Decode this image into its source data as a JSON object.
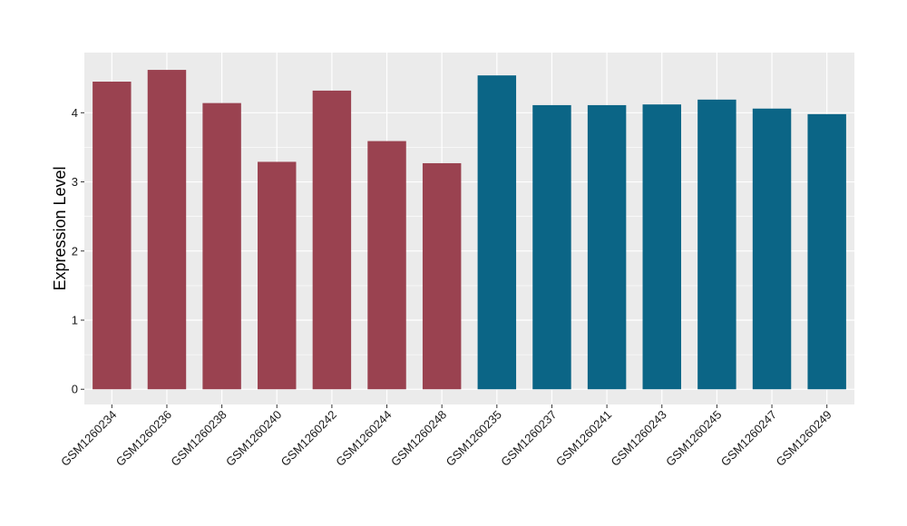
{
  "chart_data": {
    "type": "bar",
    "title": "",
    "xlabel": "",
    "ylabel": "Expression Level",
    "ylim": [
      -0.22,
      4.87
    ],
    "yticks": [
      0,
      1,
      2,
      3,
      4
    ],
    "grid": true,
    "legend": "none",
    "panel_background": "#EBEBEB",
    "grid_color": "#FFFFFF",
    "categories": [
      "GSM1260234",
      "GSM1260236",
      "GSM1260238",
      "GSM1260240",
      "GSM1260242",
      "GSM1260244",
      "GSM1260248",
      "GSM1260235",
      "GSM1260237",
      "GSM1260241",
      "GSM1260243",
      "GSM1260245",
      "GSM1260247",
      "GSM1260249"
    ],
    "values": [
      4.45,
      4.62,
      4.14,
      3.29,
      4.32,
      3.59,
      3.27,
      4.54,
      4.11,
      4.11,
      4.12,
      4.19,
      4.06,
      3.98
    ],
    "bar_colors": [
      "#9A4250",
      "#9A4250",
      "#9A4250",
      "#9A4250",
      "#9A4250",
      "#9A4250",
      "#9A4250",
      "#0B6586",
      "#0B6586",
      "#0B6586",
      "#0B6586",
      "#0B6586",
      "#0B6586",
      "#0B6586"
    ]
  }
}
